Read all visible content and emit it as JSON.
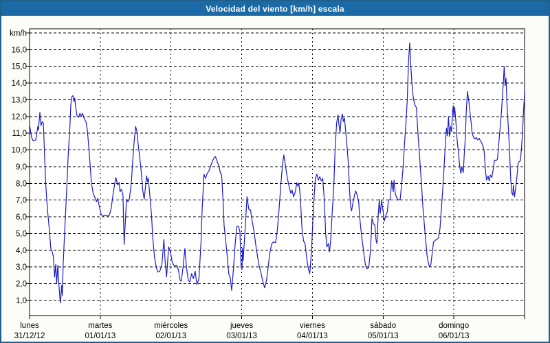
{
  "window": {
    "title": "Velocidad del viento [km/h] escala"
  },
  "colors": {
    "title_bar": "#1b6aa5",
    "title_text": "#ffffff",
    "outer_border": "#20608c",
    "background": "#fcfcf8",
    "plot_background": "#ffffff",
    "plot_border": "#000000",
    "grid": "#000000",
    "tick_text": "#000000",
    "line": "#1a1ac8"
  },
  "chart_data": {
    "type": "line",
    "title": "Velocidad del viento [km/h] escala",
    "xlabel": "",
    "ylabel": "km/h",
    "legend": "none",
    "grid": "dashed",
    "ylim": [
      0,
      17
    ],
    "y_gridlines": [
      1,
      2,
      3,
      4,
      5,
      6,
      7,
      8,
      9,
      10,
      11,
      12,
      13,
      14,
      15,
      16,
      17
    ],
    "y_tick_labels": [
      "16,0",
      "15,0",
      "14,0",
      "13,0",
      "12,0",
      "11,0",
      "10,0",
      "9,0",
      "8,0",
      "7,0",
      "6,0",
      "5,0",
      "4,0",
      "3,0",
      "2,0",
      "1,0"
    ],
    "y_tick_values": [
      16,
      15,
      14,
      13,
      12,
      11,
      10,
      9,
      8,
      7,
      6,
      5,
      4,
      3,
      2,
      1
    ],
    "x_range_hours": [
      0,
      168
    ],
    "days": [
      {
        "name": "lunes",
        "date": "31/12/12"
      },
      {
        "name": "martes",
        "date": "01/01/13"
      },
      {
        "name": "miércoles",
        "date": "02/01/13"
      },
      {
        "name": "jueves",
        "date": "03/01/13"
      },
      {
        "name": "viernes",
        "date": "04/01/13"
      },
      {
        "name": "sábado",
        "date": "05/01/13"
      },
      {
        "name": "domingo",
        "date": "06/01/13"
      }
    ],
    "series_name": "Velocidad del viento",
    "unit": "km/h",
    "points": [
      [
        0,
        11.5
      ],
      [
        0.7,
        10.75
      ],
      [
        1.2,
        10.55
      ],
      [
        2.1,
        10.6
      ],
      [
        2.8,
        11.4
      ],
      [
        3.0,
        11.2
      ],
      [
        3.5,
        12.25
      ],
      [
        3.9,
        11.45
      ],
      [
        4.3,
        11.7
      ],
      [
        4.7,
        11.6
      ],
      [
        5.1,
        9.6
      ],
      [
        5.5,
        7.9
      ],
      [
        6.1,
        6.4
      ],
      [
        6.8,
        5.1
      ],
      [
        7.2,
        4.1
      ],
      [
        7.7,
        3.9
      ],
      [
        8.1,
        3.6
      ],
      [
        8.5,
        2.4
      ],
      [
        8.9,
        3.15
      ],
      [
        9.2,
        2.0
      ],
      [
        9.6,
        3.1
      ],
      [
        9.9,
        2.1
      ],
      [
        10.3,
        1.15
      ],
      [
        10.5,
        0.85
      ],
      [
        10.9,
        1.9
      ],
      [
        11.1,
        1.3
      ],
      [
        11.4,
        3.2
      ],
      [
        12.0,
        5.4
      ],
      [
        12.6,
        7.6
      ],
      [
        13.1,
        9.6
      ],
      [
        13.7,
        11.4
      ],
      [
        14.0,
        12.7
      ],
      [
        14.4,
        13.2
      ],
      [
        14.7,
        13.25
      ],
      [
        15.1,
        12.9
      ],
      [
        15.3,
        13.1
      ],
      [
        15.7,
        12.5
      ],
      [
        16.1,
        12.05
      ],
      [
        16.6,
        11.95
      ],
      [
        17.1,
        12.2
      ],
      [
        17.5,
        12.0
      ],
      [
        18.0,
        12.2
      ],
      [
        18.5,
        11.9
      ],
      [
        19.2,
        11.65
      ],
      [
        19.6,
        11.2
      ],
      [
        20.1,
        10.2
      ],
      [
        20.6,
        9.0
      ],
      [
        21.0,
        8.0
      ],
      [
        21.6,
        7.4
      ],
      [
        22.2,
        7.15
      ],
      [
        22.7,
        6.9
      ],
      [
        23.1,
        7.1
      ],
      [
        23.7,
        6.6
      ],
      [
        24.3,
        6.15
      ],
      [
        25.0,
        6.05
      ],
      [
        25.7,
        6.1
      ],
      [
        26.4,
        6.05
      ],
      [
        27.1,
        6.1
      ],
      [
        27.7,
        6.5
      ],
      [
        28.3,
        7.3
      ],
      [
        28.9,
        8.0
      ],
      [
        29.3,
        8.35
      ],
      [
        29.9,
        7.9
      ],
      [
        30.4,
        8.05
      ],
      [
        30.7,
        7.5
      ],
      [
        31.2,
        7.65
      ],
      [
        31.7,
        7.3
      ],
      [
        31.9,
        5.8
      ],
      [
        32.1,
        4.35
      ],
      [
        32.6,
        6.0
      ],
      [
        32.9,
        7.05
      ],
      [
        33.4,
        6.9
      ],
      [
        33.9,
        7.1
      ],
      [
        34.5,
        8.0
      ],
      [
        35.0,
        9.3
      ],
      [
        35.5,
        10.5
      ],
      [
        36.0,
        11.4
      ],
      [
        36.4,
        11.15
      ],
      [
        36.9,
        10.3
      ],
      [
        37.5,
        9.4
      ],
      [
        38.0,
        8.5
      ],
      [
        38.4,
        7.6
      ],
      [
        38.9,
        7.05
      ],
      [
        39.4,
        7.9
      ],
      [
        39.7,
        8.45
      ],
      [
        40.1,
        8.1
      ],
      [
        40.3,
        8.3
      ],
      [
        40.8,
        7.3
      ],
      [
        41.4,
        6.1
      ],
      [
        41.8,
        4.8
      ],
      [
        42.4,
        3.6
      ],
      [
        43.0,
        3.0
      ],
      [
        43.5,
        2.7
      ],
      [
        44.2,
        2.75
      ],
      [
        44.9,
        3.1
      ],
      [
        45.6,
        4.65
      ],
      [
        46.0,
        3.4
      ],
      [
        46.5,
        2.4
      ],
      [
        47.2,
        4.2
      ],
      [
        47.8,
        3.9
      ],
      [
        48.4,
        3.3
      ],
      [
        49.1,
        3.05
      ],
      [
        49.9,
        3.1
      ],
      [
        50.5,
        2.85
      ],
      [
        51.1,
        2.2
      ],
      [
        51.5,
        2.15
      ],
      [
        52.1,
        3.0
      ],
      [
        52.7,
        4.1
      ],
      [
        53.3,
        2.9
      ],
      [
        53.9,
        2.2
      ],
      [
        54.4,
        2.1
      ],
      [
        55.0,
        2.6
      ],
      [
        55.6,
        2.3
      ],
      [
        56.2,
        2.75
      ],
      [
        56.8,
        1.95
      ],
      [
        57.5,
        2.3
      ],
      [
        58.2,
        4.5
      ],
      [
        58.6,
        6.5
      ],
      [
        59.2,
        8.55
      ],
      [
        59.7,
        8.3
      ],
      [
        60.3,
        8.6
      ],
      [
        60.9,
        8.75
      ],
      [
        61.6,
        9.1
      ],
      [
        62.1,
        9.35
      ],
      [
        62.7,
        9.55
      ],
      [
        63.1,
        9.6
      ],
      [
        63.7,
        9.3
      ],
      [
        64.3,
        9.0
      ],
      [
        64.8,
        8.6
      ],
      [
        65.2,
        8.5
      ],
      [
        65.7,
        6.9
      ],
      [
        66.0,
        5.5
      ],
      [
        66.5,
        4.7
      ],
      [
        67.1,
        3.6
      ],
      [
        67.6,
        2.6
      ],
      [
        68.1,
        2.35
      ],
      [
        68.6,
        1.6
      ],
      [
        69.2,
        2.9
      ],
      [
        69.7,
        4.2
      ],
      [
        70.3,
        5.4
      ],
      [
        70.9,
        5.45
      ],
      [
        71.4,
        5.1
      ],
      [
        71.8,
        3.0
      ],
      [
        72.1,
        2.85
      ],
      [
        72.3,
        4.15
      ],
      [
        72.5,
        3.4
      ],
      [
        72.9,
        4.5
      ],
      [
        73.4,
        6.0
      ],
      [
        73.8,
        7.2
      ],
      [
        74.4,
        6.45
      ],
      [
        75.0,
        6.4
      ],
      [
        75.6,
        5.7
      ],
      [
        76.2,
        5.1
      ],
      [
        76.8,
        4.3
      ],
      [
        77.5,
        3.5
      ],
      [
        78.0,
        3.0
      ],
      [
        78.6,
        2.6
      ],
      [
        79.2,
        2.1
      ],
      [
        79.8,
        1.75
      ],
      [
        80.4,
        2.2
      ],
      [
        81.0,
        3.0
      ],
      [
        81.5,
        3.8
      ],
      [
        82.2,
        4.4
      ],
      [
        82.8,
        4.5
      ],
      [
        83.5,
        4.45
      ],
      [
        84.1,
        5.2
      ],
      [
        84.7,
        6.5
      ],
      [
        85.3,
        8.0
      ],
      [
        85.9,
        9.2
      ],
      [
        86.3,
        9.7
      ],
      [
        86.9,
        9.0
      ],
      [
        87.5,
        8.3
      ],
      [
        88.1,
        7.8
      ],
      [
        88.7,
        7.4
      ],
      [
        89.1,
        7.6
      ],
      [
        89.6,
        7.2
      ],
      [
        90.2,
        7.5
      ],
      [
        90.7,
        8.05
      ],
      [
        91.0,
        7.85
      ],
      [
        91.4,
        8.0
      ],
      [
        91.8,
        7.4
      ],
      [
        92.2,
        6.2
      ],
      [
        92.5,
        5.2
      ],
      [
        93.0,
        4.55
      ],
      [
        93.5,
        4.4
      ],
      [
        94.0,
        3.6
      ],
      [
        94.6,
        2.9
      ],
      [
        95.1,
        2.6
      ],
      [
        95.7,
        4.0
      ],
      [
        96.1,
        5.6
      ],
      [
        96.5,
        7.0
      ],
      [
        97.0,
        8.3
      ],
      [
        97.5,
        8.55
      ],
      [
        98.0,
        8.2
      ],
      [
        98.5,
        8.4
      ],
      [
        99.0,
        8.15
      ],
      [
        99.5,
        8.3
      ],
      [
        100.0,
        7.1
      ],
      [
        100.5,
        5.0
      ],
      [
        100.9,
        4.2
      ],
      [
        101.4,
        4.4
      ],
      [
        101.8,
        3.9
      ],
      [
        102.2,
        4.6
      ],
      [
        102.7,
        6.2
      ],
      [
        103.3,
        8.0
      ],
      [
        103.7,
        10.0
      ],
      [
        104.2,
        11.6
      ],
      [
        104.7,
        12.1
      ],
      [
        105.0,
        11.5
      ],
      [
        105.4,
        11.05
      ],
      [
        105.7,
        11.8
      ],
      [
        106.2,
        12.15
      ],
      [
        106.5,
        11.7
      ],
      [
        106.9,
        11.9
      ],
      [
        107.2,
        11.3
      ],
      [
        107.7,
        10.3
      ],
      [
        108.2,
        9.2
      ],
      [
        108.6,
        7.6
      ],
      [
        109.0,
        6.6
      ],
      [
        109.3,
        6.35
      ],
      [
        109.8,
        6.9
      ],
      [
        110.3,
        7.3
      ],
      [
        110.7,
        7.55
      ],
      [
        111.2,
        7.3
      ],
      [
        111.7,
        6.9
      ],
      [
        112.1,
        5.9
      ],
      [
        112.6,
        5.0
      ],
      [
        113.1,
        4.3
      ],
      [
        113.6,
        3.6
      ],
      [
        114.0,
        3.1
      ],
      [
        114.5,
        2.9
      ],
      [
        115.1,
        2.95
      ],
      [
        115.7,
        4.0
      ],
      [
        116.2,
        5.9
      ],
      [
        116.7,
        5.6
      ],
      [
        117.2,
        5.5
      ],
      [
        117.6,
        4.6
      ],
      [
        117.9,
        4.4
      ],
      [
        118.3,
        6.0
      ],
      [
        118.7,
        7.05
      ],
      [
        119.0,
        6.2
      ],
      [
        119.5,
        7.0
      ],
      [
        120.0,
        6.3
      ],
      [
        120.4,
        5.75
      ],
      [
        120.9,
        6.05
      ],
      [
        121.4,
        6.3
      ],
      [
        121.8,
        7.0
      ],
      [
        122.4,
        7.05
      ],
      [
        122.9,
        8.15
      ],
      [
        123.4,
        7.5
      ],
      [
        123.7,
        8.2
      ],
      [
        124.1,
        7.4
      ],
      [
        124.6,
        7.15
      ],
      [
        125.2,
        7.0
      ],
      [
        125.8,
        7.05
      ],
      [
        126.3,
        8.0
      ],
      [
        126.8,
        9.0
      ],
      [
        127.2,
        10.2
      ],
      [
        127.7,
        11.5
      ],
      [
        128.2,
        13.0
      ],
      [
        128.6,
        15.2
      ],
      [
        129.0,
        16.4
      ],
      [
        129.4,
        15.0
      ],
      [
        129.8,
        13.9
      ],
      [
        130.1,
        13.3
      ],
      [
        130.6,
        12.8
      ],
      [
        131.0,
        12.6
      ],
      [
        131.3,
        12.55
      ],
      [
        131.8,
        11.0
      ],
      [
        132.2,
        10.0
      ],
      [
        132.6,
        9.0
      ],
      [
        133.0,
        8.0
      ],
      [
        133.5,
        6.6
      ],
      [
        134.0,
        5.5
      ],
      [
        134.5,
        4.5
      ],
      [
        134.9,
        3.7
      ],
      [
        135.4,
        3.2
      ],
      [
        135.8,
        3.0
      ],
      [
        136.2,
        3.15
      ],
      [
        136.7,
        3.9
      ],
      [
        137.1,
        4.5
      ],
      [
        137.7,
        4.6
      ],
      [
        138.3,
        4.65
      ],
      [
        138.8,
        4.75
      ],
      [
        139.3,
        5.3
      ],
      [
        139.7,
        6.3
      ],
      [
        140.2,
        7.6
      ],
      [
        140.7,
        9.0
      ],
      [
        141.1,
        10.3
      ],
      [
        141.5,
        11.3
      ],
      [
        141.8,
        10.85
      ],
      [
        142.2,
        12.0
      ],
      [
        142.5,
        10.8
      ],
      [
        142.9,
        11.4
      ],
      [
        143.2,
        11.1
      ],
      [
        143.6,
        12.3
      ],
      [
        143.8,
        12.65
      ],
      [
        144.0,
        11.95
      ],
      [
        144.3,
        12.55
      ],
      [
        144.7,
        11.7
      ],
      [
        145.1,
        10.6
      ],
      [
        145.6,
        9.8
      ],
      [
        146.0,
        9.0
      ],
      [
        146.4,
        8.6
      ],
      [
        146.7,
        9.0
      ],
      [
        147.2,
        8.65
      ],
      [
        147.5,
        9.6
      ],
      [
        147.9,
        10.8
      ],
      [
        148.2,
        12.2
      ],
      [
        148.6,
        13.5
      ],
      [
        149.1,
        12.9
      ],
      [
        149.5,
        12.2
      ],
      [
        149.9,
        11.6
      ],
      [
        150.2,
        11.0
      ],
      [
        150.7,
        10.75
      ],
      [
        151.2,
        10.65
      ],
      [
        151.6,
        10.75
      ],
      [
        152.1,
        10.6
      ],
      [
        152.6,
        10.7
      ],
      [
        153.0,
        10.55
      ],
      [
        153.5,
        10.4
      ],
      [
        154.0,
        10.15
      ],
      [
        154.3,
        9.9
      ],
      [
        154.7,
        8.8
      ],
      [
        155.1,
        8.2
      ],
      [
        155.6,
        8.45
      ],
      [
        156.0,
        8.15
      ],
      [
        156.4,
        8.5
      ],
      [
        156.9,
        8.35
      ],
      [
        157.4,
        8.9
      ],
      [
        157.8,
        9.4
      ],
      [
        158.3,
        9.35
      ],
      [
        158.8,
        9.45
      ],
      [
        159.2,
        10.3
      ],
      [
        159.7,
        11.3
      ],
      [
        160.2,
        12.4
      ],
      [
        160.6,
        13.5
      ],
      [
        160.9,
        14.4
      ],
      [
        161.1,
        15.0
      ],
      [
        161.4,
        13.85
      ],
      [
        161.7,
        14.3
      ],
      [
        162.1,
        12.5
      ],
      [
        162.6,
        11.0
      ],
      [
        163.0,
        9.5
      ],
      [
        163.3,
        8.2
      ],
      [
        163.7,
        7.4
      ],
      [
        164.0,
        7.3
      ],
      [
        164.2,
        7.9
      ],
      [
        164.6,
        7.2
      ],
      [
        164.9,
        7.6
      ],
      [
        165.4,
        8.4
      ],
      [
        165.8,
        9.2
      ],
      [
        166.1,
        9.3
      ],
      [
        166.6,
        9.35
      ],
      [
        166.9,
        10.0
      ],
      [
        167.3,
        11.0
      ],
      [
        167.6,
        12.2
      ],
      [
        167.9,
        13.1
      ],
      [
        168.0,
        13.6
      ]
    ]
  }
}
